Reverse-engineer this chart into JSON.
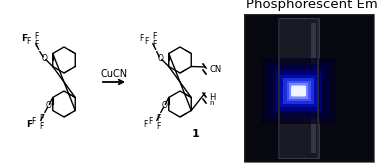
{
  "title": "Phosphorescent Emission",
  "title_fontsize": 9.5,
  "title_color": "#000000",
  "background_color": "#ffffff",
  "reagent_label": "CuCN",
  "compound_label": "1",
  "cn_label": "CN",
  "h_label": "H",
  "n_label": "n",
  "figsize": [
    3.78,
    1.64
  ],
  "dpi": 100
}
